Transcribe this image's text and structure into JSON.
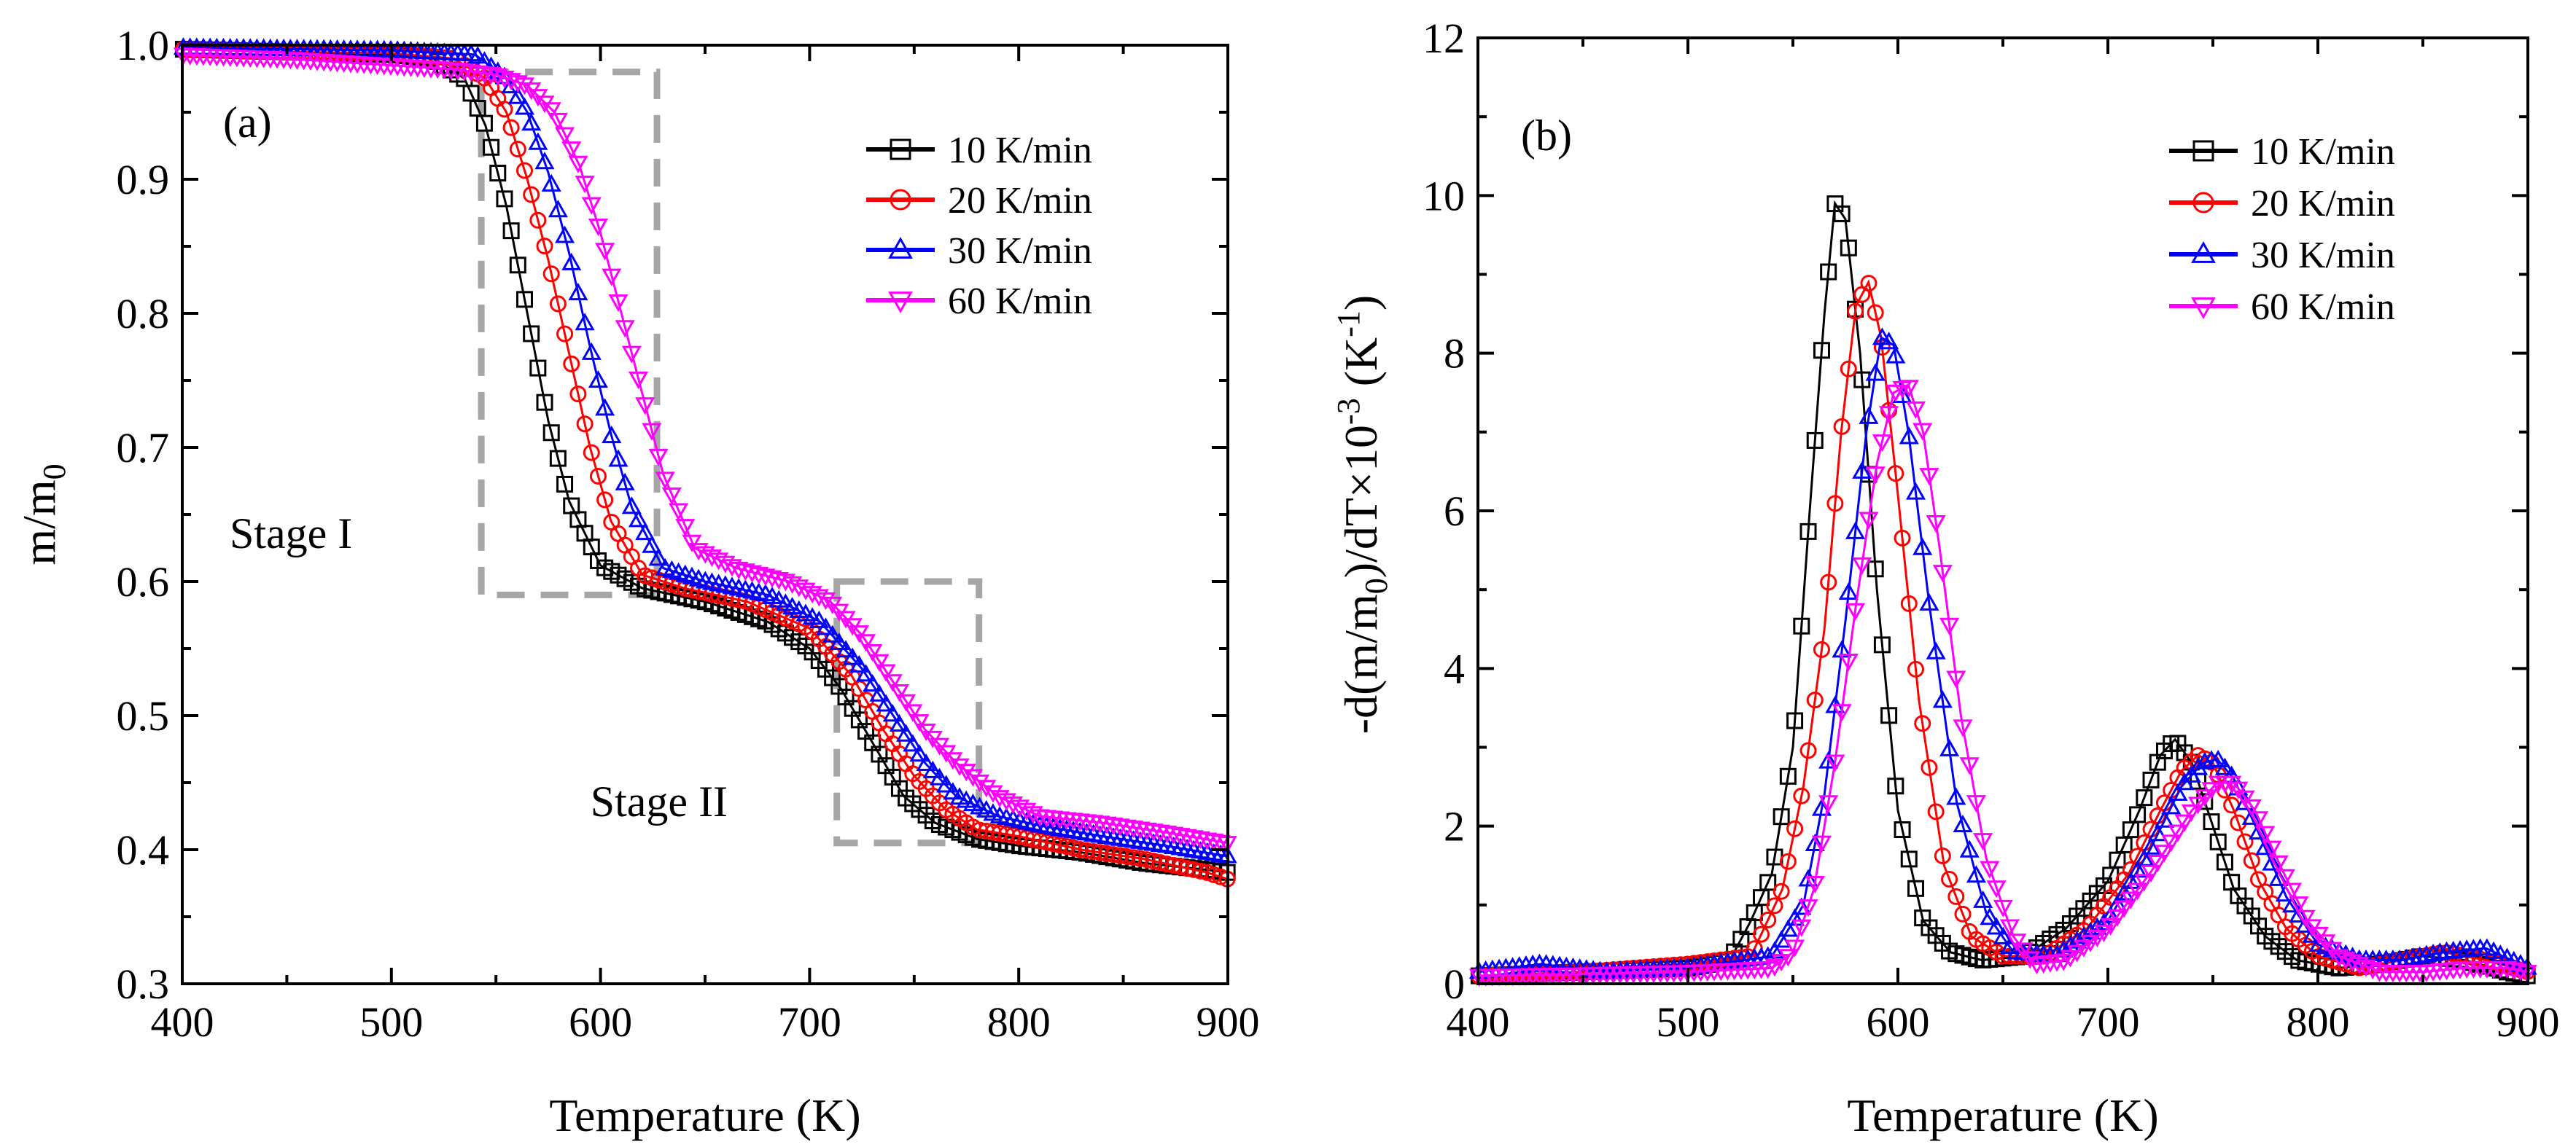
{
  "chart_data": [
    {
      "type": "scatter",
      "panel_label": "(a)",
      "xlabel": "Temperature (K)",
      "ylabel": "m/m",
      "ylabel_sub": "0",
      "xlim": [
        400,
        900
      ],
      "ylim": [
        0.3,
        1.0
      ],
      "xticks": [
        "400",
        "500",
        "600",
        "700",
        "800",
        "900"
      ],
      "yticks": [
        "0.3",
        "0.4",
        "0.5",
        "0.6",
        "0.7",
        "0.8",
        "0.9",
        "1.0"
      ],
      "legend_position": "top-right",
      "annotations": [
        {
          "text": "Stage I",
          "x": 452,
          "y": 0.625
        },
        {
          "text": "Stage II",
          "x": 628,
          "y": 0.425
        }
      ],
      "stage_boxes": [
        {
          "name": "Stage I",
          "x_range": [
            543,
            627
          ],
          "y_range": [
            0.59,
            0.98
          ]
        },
        {
          "name": "Stage II",
          "x_range": [
            713,
            781
          ],
          "y_range": [
            0.405,
            0.6
          ]
        }
      ],
      "series": [
        {
          "name": "10 K/min",
          "color": "#000000",
          "marker": "square",
          "x": [
            400,
            450,
            500,
            520,
            535,
            545,
            555,
            565,
            575,
            585,
            600,
            620,
            650,
            680,
            700,
            715,
            730,
            745,
            760,
            780,
            800,
            830,
            860,
            890,
            900
          ],
          "y": [
            0.997,
            0.995,
            0.993,
            0.99,
            0.975,
            0.94,
            0.88,
            0.8,
            0.72,
            0.66,
            0.612,
            0.595,
            0.585,
            0.57,
            0.55,
            0.52,
            0.48,
            0.44,
            0.42,
            0.408,
            0.403,
            0.398,
            0.39,
            0.385,
            0.383
          ]
        },
        {
          "name": "20 K/min",
          "color": "#ff0000",
          "marker": "circle",
          "x": [
            400,
            450,
            500,
            530,
            545,
            555,
            565,
            575,
            585,
            595,
            605,
            620,
            640,
            670,
            700,
            720,
            735,
            750,
            765,
            780,
            800,
            830,
            860,
            890,
            900
          ],
          "y": [
            0.997,
            0.995,
            0.994,
            0.99,
            0.975,
            0.95,
            0.9,
            0.84,
            0.77,
            0.7,
            0.645,
            0.605,
            0.595,
            0.585,
            0.565,
            0.53,
            0.49,
            0.455,
            0.43,
            0.415,
            0.41,
            0.4,
            0.393,
            0.383,
            0.378
          ]
        },
        {
          "name": "30 K/min",
          "color": "#0000ff",
          "marker": "triangle-up",
          "x": [
            400,
            450,
            500,
            540,
            555,
            565,
            575,
            585,
            595,
            605,
            615,
            630,
            650,
            680,
            705,
            725,
            740,
            755,
            770,
            790,
            810,
            840,
            870,
            900
          ],
          "y": [
            0.998,
            0.997,
            0.996,
            0.993,
            0.975,
            0.95,
            0.905,
            0.845,
            0.775,
            0.71,
            0.655,
            0.61,
            0.6,
            0.59,
            0.57,
            0.535,
            0.5,
            0.465,
            0.44,
            0.425,
            0.418,
            0.41,
            0.403,
            0.395
          ]
        },
        {
          "name": "60 K/min",
          "color": "#ff00ff",
          "marker": "triangle-down",
          "x": [
            400,
            450,
            500,
            530,
            550,
            565,
            578,
            590,
            600,
            610,
            620,
            630,
            645,
            665,
            690,
            710,
            725,
            740,
            755,
            770,
            790,
            810,
            840,
            870,
            900
          ],
          "y": [
            0.993,
            0.99,
            0.985,
            0.982,
            0.978,
            0.97,
            0.95,
            0.91,
            0.86,
            0.8,
            0.74,
            0.68,
            0.625,
            0.61,
            0.6,
            0.585,
            0.56,
            0.525,
            0.49,
            0.465,
            0.44,
            0.425,
            0.42,
            0.413,
            0.405
          ]
        }
      ]
    },
    {
      "type": "scatter",
      "panel_label": "(b)",
      "xlabel": "Temperature (K)",
      "ylabel": "-d(m/m",
      "ylabel_sub": "0",
      "ylabel_mid": ")/dT×10",
      "ylabel_sup": "-3",
      "ylabel_unit": " (K",
      "ylabel_unit_sup": "-1",
      "ylabel_end": ")",
      "xlim": [
        400,
        900
      ],
      "ylim": [
        0,
        12
      ],
      "xticks": [
        "400",
        "500",
        "600",
        "700",
        "800",
        "900"
      ],
      "yticks": [
        "0",
        "2",
        "4",
        "6",
        "8",
        "10",
        "12"
      ],
      "legend_position": "top-right",
      "series": [
        {
          "name": "10 K/min",
          "color": "#000000",
          "marker": "square",
          "x": [
            400,
            450,
            500,
            520,
            530,
            540,
            550,
            558,
            565,
            570,
            575,
            582,
            590,
            600,
            612,
            625,
            640,
            660,
            680,
            700,
            715,
            725,
            732,
            740,
            750,
            760,
            775,
            790,
            810,
            830,
            850,
            870,
            890,
            900
          ],
          "y": [
            0.1,
            0.15,
            0.2,
            0.3,
            0.8,
            1.4,
            3.0,
            6.0,
            8.5,
            9.9,
            9.7,
            8.0,
            5.0,
            2.2,
            0.8,
            0.4,
            0.3,
            0.35,
            0.7,
            1.3,
            2.2,
            2.9,
            3.1,
            2.8,
            2.0,
            1.2,
            0.6,
            0.3,
            0.2,
            0.25,
            0.35,
            0.3,
            0.15,
            0.1
          ]
        },
        {
          "name": "20 K/min",
          "color": "#ff0000",
          "marker": "circle",
          "x": [
            400,
            450,
            500,
            530,
            545,
            555,
            565,
            573,
            580,
            586,
            592,
            600,
            610,
            622,
            635,
            650,
            670,
            690,
            710,
            725,
            735,
            743,
            750,
            760,
            772,
            785,
            800,
            820,
            840,
            860,
            880,
            900
          ],
          "y": [
            0.1,
            0.15,
            0.25,
            0.35,
            1.2,
            2.5,
            4.5,
            7.0,
            8.6,
            8.9,
            8.2,
            6.2,
            3.6,
            1.5,
            0.6,
            0.35,
            0.35,
            0.7,
            1.4,
            2.2,
            2.7,
            2.9,
            2.8,
            2.2,
            1.3,
            0.7,
            0.35,
            0.2,
            0.3,
            0.4,
            0.3,
            0.15
          ]
        },
        {
          "name": "30 K/min",
          "color": "#0000ff",
          "marker": "triangle-up",
          "x": [
            400,
            430,
            460,
            500,
            540,
            555,
            565,
            575,
            585,
            592,
            598,
            605,
            615,
            628,
            642,
            655,
            675,
            700,
            720,
            735,
            745,
            752,
            760,
            772,
            785,
            800,
            820,
            840,
            860,
            880,
            900
          ],
          "y": [
            0.15,
            0.25,
            0.15,
            0.2,
            0.35,
            1.0,
            2.4,
            4.6,
            7.0,
            8.2,
            8.1,
            7.0,
            4.8,
            2.3,
            0.9,
            0.4,
            0.35,
            0.8,
            1.7,
            2.5,
            2.8,
            2.85,
            2.6,
            1.9,
            1.1,
            0.5,
            0.3,
            0.3,
            0.4,
            0.45,
            0.2
          ]
        },
        {
          "name": "60 K/min",
          "color": "#ff00ff",
          "marker": "triangle-down",
          "x": [
            400,
            450,
            500,
            540,
            550,
            560,
            570,
            580,
            590,
            598,
            605,
            612,
            620,
            630,
            642,
            655,
            665,
            680,
            700,
            720,
            740,
            752,
            760,
            770,
            782,
            795,
            810,
            830,
            850,
            870,
            890,
            900
          ],
          "y": [
            0.1,
            0.12,
            0.15,
            0.2,
            0.4,
            1.2,
            2.8,
            4.8,
            6.6,
            7.5,
            7.6,
            7.0,
            5.5,
            3.4,
            1.6,
            0.6,
            0.25,
            0.3,
            0.7,
            1.4,
            2.2,
            2.55,
            2.55,
            2.2,
            1.5,
            0.8,
            0.35,
            0.15,
            0.15,
            0.2,
            0.2,
            0.15
          ]
        }
      ]
    }
  ]
}
